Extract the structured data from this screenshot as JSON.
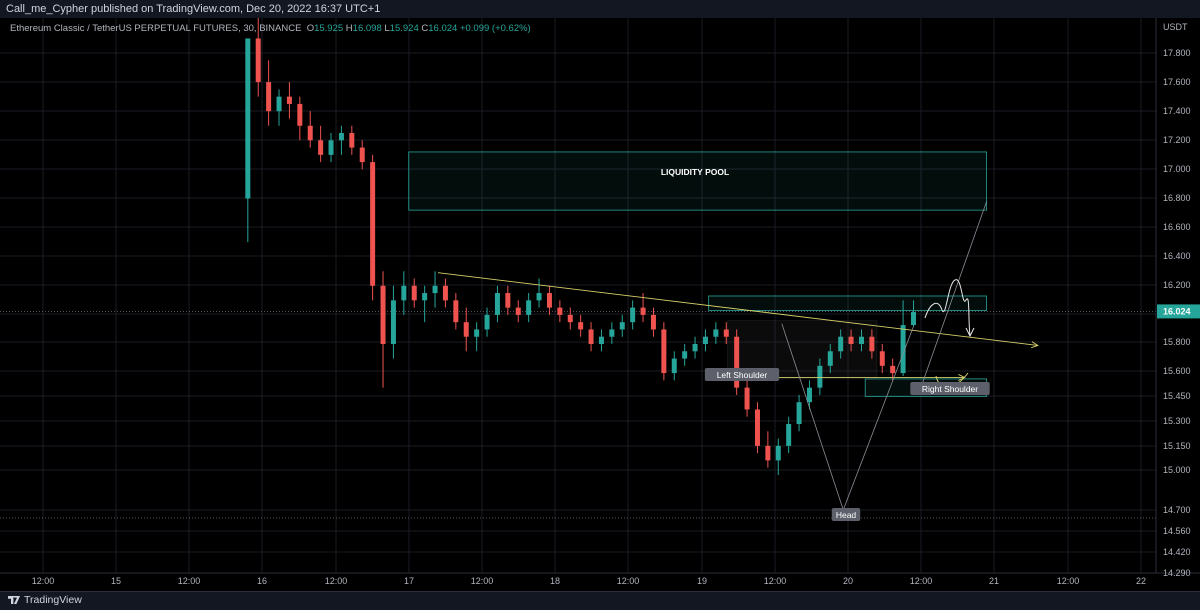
{
  "header": {
    "published": "Call_me_Cypher published on TradingView.com, Dec 20, 2022 16:37 UTC+1"
  },
  "legend": {
    "symbol": "Ethereum Classic / TetherUS PERPETUAL FUTURES, 30, BINANCE",
    "open_label": "O",
    "open": "15.925",
    "high_label": "H",
    "high": "16.098",
    "low_label": "L",
    "low": "15.924",
    "close_label": "C",
    "close": "16.024",
    "change": "+0.099 (+0.62%)"
  },
  "footer": {
    "brand": "TradingView"
  },
  "colors": {
    "up": "#26a69a",
    "down": "#ef5350",
    "zone": "#26a69a",
    "trendline": "#d6cf6a",
    "grid": "#1a1d24",
    "text": "#d1d4dc"
  },
  "chart_data": {
    "type": "candlestick",
    "currency": "USDT",
    "last_price": "16.024",
    "y_ticks": [
      "17.800",
      "17.600",
      "17.400",
      "17.200",
      "17.000",
      "16.800",
      "16.600",
      "16.400",
      "16.200",
      "16.000",
      "15.800",
      "15.600",
      "15.450",
      "15.300",
      "15.150",
      "15.000",
      "14.700",
      "14.560",
      "14.420",
      "14.290"
    ],
    "x_ticks": [
      "12:00",
      "15",
      "12:00",
      "16",
      "12:00",
      "17",
      "12:00",
      "18",
      "12:00",
      "19",
      "12:00",
      "20",
      "12:00",
      "21",
      "12:00",
      "22"
    ],
    "x_range_days": [
      14.5,
      22.1
    ],
    "dotted_levels": [
      16.024,
      14.68
    ],
    "annotations": {
      "liquidity_pool": "LIQUIDITY POOL",
      "left_shoulder": "Left Shoulder",
      "head": "Head",
      "right_shoulder": "Right Shoulder"
    },
    "zones": [
      {
        "name": "liquidity-pool",
        "t0": 17.0,
        "t1": 20.95,
        "top": 17.12,
        "bottom": 16.72
      },
      {
        "name": "resistance-zone",
        "t0": 19.05,
        "t1": 20.95,
        "top": 16.13,
        "bottom": 16.03
      },
      {
        "name": "right-shoulder-zone",
        "t0": 20.12,
        "t1": 20.95,
        "top": 15.56,
        "bottom": 15.44
      },
      {
        "name": "shoulder-box",
        "t0": 19.18,
        "t1": 20.2,
        "top": 15.96,
        "bottom": 15.56
      }
    ],
    "trendlines": [
      {
        "name": "neckline",
        "t0": 17.2,
        "p0": 16.29,
        "t1": 21.3,
        "p1": 15.79,
        "arrow": true
      },
      {
        "name": "shoulder-line",
        "t0": 19.2,
        "p0": 15.57,
        "t1": 20.8,
        "p1": 15.57,
        "arrow": true
      },
      {
        "name": "head-left-leg",
        "t0": 19.55,
        "p0": 15.94,
        "t1": 19.97,
        "p1": 14.66
      },
      {
        "name": "head-right-leg",
        "t0": 19.97,
        "p0": 14.66,
        "t1": 20.45,
        "p1": 15.92
      },
      {
        "name": "target-line",
        "t0": 20.5,
        "p0": 15.5,
        "t1": 20.95,
        "p1": 16.78
      }
    ],
    "candles_ohlc_30m": [
      [
        16.8,
        17.9,
        16.5,
        17.9
      ],
      [
        17.9,
        18.1,
        17.5,
        17.6
      ],
      [
        17.6,
        17.75,
        17.3,
        17.4
      ],
      [
        17.4,
        17.55,
        17.3,
        17.5
      ],
      [
        17.5,
        17.6,
        17.35,
        17.45
      ],
      [
        17.45,
        17.5,
        17.2,
        17.3
      ],
      [
        17.3,
        17.4,
        17.15,
        17.2
      ],
      [
        17.2,
        17.3,
        17.05,
        17.1
      ],
      [
        17.1,
        17.25,
        17.05,
        17.2
      ],
      [
        17.2,
        17.3,
        17.1,
        17.25
      ],
      [
        17.25,
        17.3,
        17.1,
        17.15
      ],
      [
        17.15,
        17.2,
        17.0,
        17.05
      ],
      [
        17.05,
        17.1,
        16.1,
        16.2
      ],
      [
        16.2,
        16.3,
        15.5,
        15.8
      ],
      [
        15.8,
        16.2,
        15.7,
        16.1
      ],
      [
        16.1,
        16.3,
        16.0,
        16.2
      ],
      [
        16.2,
        16.25,
        16.05,
        16.1
      ],
      [
        16.1,
        16.2,
        15.95,
        16.15
      ],
      [
        16.15,
        16.3,
        16.05,
        16.2
      ],
      [
        16.2,
        16.25,
        16.05,
        16.1
      ],
      [
        16.1,
        16.15,
        15.9,
        15.95
      ],
      [
        15.95,
        16.05,
        15.75,
        15.85
      ],
      [
        15.85,
        15.95,
        15.75,
        15.9
      ],
      [
        15.9,
        16.05,
        15.85,
        16.0
      ],
      [
        16.0,
        16.2,
        15.95,
        16.15
      ],
      [
        16.15,
        16.2,
        16.0,
        16.05
      ],
      [
        16.05,
        16.1,
        15.95,
        16.0
      ],
      [
        16.0,
        16.15,
        15.95,
        16.1
      ],
      [
        16.1,
        16.25,
        16.05,
        16.15
      ],
      [
        16.15,
        16.2,
        16.0,
        16.05
      ],
      [
        16.05,
        16.1,
        15.95,
        16.0
      ],
      [
        16.0,
        16.05,
        15.9,
        15.95
      ],
      [
        15.95,
        16.0,
        15.85,
        15.9
      ],
      [
        15.9,
        15.95,
        15.75,
        15.8
      ],
      [
        15.8,
        15.9,
        15.75,
        15.85
      ],
      [
        15.85,
        15.95,
        15.8,
        15.9
      ],
      [
        15.9,
        16.0,
        15.85,
        15.95
      ],
      [
        15.95,
        16.1,
        15.9,
        16.05
      ],
      [
        16.05,
        16.15,
        15.95,
        16.0
      ],
      [
        16.0,
        16.05,
        15.85,
        15.9
      ],
      [
        15.9,
        15.95,
        15.55,
        15.6
      ],
      [
        15.6,
        15.75,
        15.55,
        15.7
      ],
      [
        15.7,
        15.8,
        15.65,
        15.75
      ],
      [
        15.75,
        15.85,
        15.7,
        15.8
      ],
      [
        15.8,
        15.9,
        15.75,
        15.85
      ],
      [
        15.85,
        15.95,
        15.8,
        15.9
      ],
      [
        15.9,
        15.95,
        15.8,
        15.85
      ],
      [
        15.85,
        15.9,
        15.45,
        15.5
      ],
      [
        15.5,
        15.55,
        15.3,
        15.35
      ],
      [
        15.35,
        15.4,
        15.05,
        15.1
      ],
      [
        15.1,
        15.2,
        14.95,
        15.0
      ],
      [
        15.0,
        15.15,
        14.9,
        15.1
      ],
      [
        15.1,
        15.3,
        15.05,
        15.25
      ],
      [
        15.25,
        15.45,
        15.2,
        15.4
      ],
      [
        15.4,
        15.55,
        15.35,
        15.5
      ],
      [
        15.5,
        15.7,
        15.45,
        15.65
      ],
      [
        15.65,
        15.8,
        15.6,
        15.75
      ],
      [
        15.75,
        15.9,
        15.7,
        15.85
      ],
      [
        15.85,
        15.9,
        15.75,
        15.8
      ],
      [
        15.8,
        15.9,
        15.75,
        15.85
      ],
      [
        15.85,
        15.9,
        15.7,
        15.75
      ],
      [
        15.75,
        15.8,
        15.6,
        15.65
      ],
      [
        15.65,
        15.7,
        15.55,
        15.6
      ],
      [
        15.6,
        16.1,
        15.58,
        15.93
      ],
      [
        15.93,
        16.1,
        15.92,
        16.02
      ]
    ]
  }
}
